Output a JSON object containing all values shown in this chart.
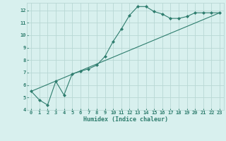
{
  "xlabel": "Humidex (Indice chaleur)",
  "background_color": "#d8f0ee",
  "grid_color": "#b8d8d4",
  "line_color": "#2e7d6e",
  "curve1_x": [
    0,
    1,
    2,
    3,
    4,
    5,
    6,
    7,
    8,
    9,
    10,
    11,
    12,
    13,
    14,
    15,
    16,
    17,
    18,
    19,
    20,
    21,
    22,
    23
  ],
  "curve1_y": [
    5.5,
    4.8,
    4.4,
    6.3,
    5.2,
    6.9,
    7.1,
    7.3,
    7.6,
    8.3,
    9.5,
    10.5,
    11.6,
    12.3,
    12.3,
    11.9,
    11.7,
    11.35,
    11.35,
    11.5,
    11.8,
    11.8,
    11.8,
    11.8
  ],
  "curve2_x": [
    0,
    23
  ],
  "curve2_y": [
    5.5,
    11.8
  ],
  "xlim": [
    -0.5,
    23.5
  ],
  "ylim": [
    4,
    12.6
  ],
  "xticks": [
    0,
    1,
    2,
    3,
    4,
    5,
    6,
    7,
    8,
    9,
    10,
    11,
    12,
    13,
    14,
    15,
    16,
    17,
    18,
    19,
    20,
    21,
    22,
    23
  ],
  "yticks": [
    4,
    5,
    6,
    7,
    8,
    9,
    10,
    11,
    12
  ],
  "xlabel_fontsize": 6,
  "tick_fontsize": 5,
  "line_width": 0.8,
  "marker": "D",
  "marker_size": 2.0
}
